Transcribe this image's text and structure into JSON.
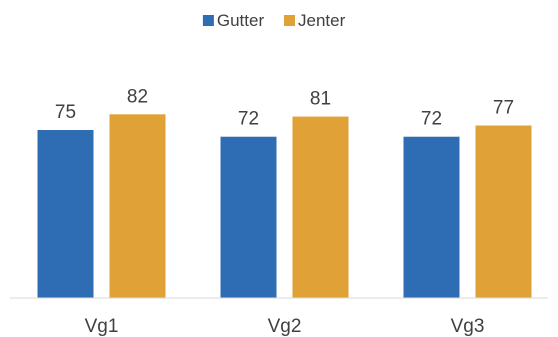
{
  "chart_data": {
    "type": "bar",
    "categories": [
      "Vg1",
      "Vg2",
      "Vg3"
    ],
    "series": [
      {
        "name": "Gutter",
        "values": [
          75,
          72,
          72
        ],
        "color": "#2e6db4"
      },
      {
        "name": "Jenter",
        "values": [
          82,
          81,
          77
        ],
        "color": "#e0a236"
      }
    ],
    "title": "",
    "xlabel": "",
    "ylabel": "",
    "ylim": [
      0,
      100
    ],
    "grid": false,
    "legend": "top-center",
    "data_labels": true
  }
}
